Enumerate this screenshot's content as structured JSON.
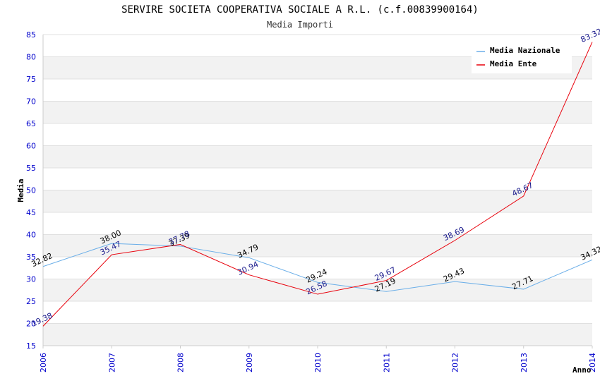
{
  "chart_data": {
    "type": "line",
    "title": "SERVIRE SOCIETA COOPERATIVA SOCIALE A R.L. (c.f.00839900164)",
    "subtitle": "Media Importi",
    "xlabel": "Anno",
    "ylabel": "Media",
    "x": [
      "2006",
      "2007",
      "2008",
      "2009",
      "2010",
      "2011",
      "2012",
      "2013",
      "2014"
    ],
    "ylim": [
      15,
      85
    ],
    "yticks": [
      "15",
      "20",
      "25",
      "30",
      "35",
      "40",
      "45",
      "50",
      "55",
      "60",
      "65",
      "70",
      "75",
      "80",
      "85"
    ],
    "grid": "horizontal alternating bands",
    "legend_position": "top-right",
    "series": [
      {
        "name": "Media Nazionale",
        "color": "#6aaee8",
        "values": [
          32.82,
          38.0,
          37.39,
          34.79,
          29.24,
          27.19,
          29.43,
          27.71,
          34.32
        ],
        "labels": [
          "32.82",
          "38.00",
          "37.39",
          "34.79",
          "29.24",
          "27.19",
          "29.43",
          "27.71",
          "34.32"
        ]
      },
      {
        "name": "Media Ente",
        "color": "#e8000b",
        "values": [
          19.38,
          35.47,
          37.78,
          30.94,
          26.58,
          29.67,
          38.69,
          48.67,
          83.32
        ],
        "labels": [
          "19.38",
          "35.47",
          "37.78",
          "30.94",
          "26.58",
          "29.67",
          "38.69",
          "48.67",
          "83.32"
        ]
      }
    ]
  }
}
